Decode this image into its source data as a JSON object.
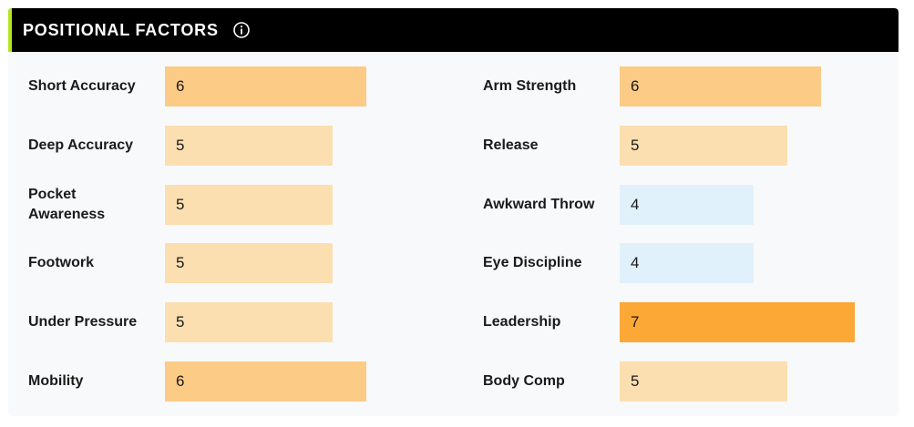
{
  "title": "POSITIONAL FACTORS",
  "icons": {
    "info": "info-icon"
  },
  "colors": {
    "header_bg": "#000000",
    "accent": "#b5e61d",
    "panel_bg": "#f8f9fb",
    "score_4": "#e1f1fc",
    "score_5": "#fcdfb1",
    "score_6": "#fccb86",
    "score_7": "#fba837"
  },
  "scale_max": 7,
  "left_factors": [
    {
      "label": "Short Accuracy",
      "value": 6
    },
    {
      "label": "Deep Accuracy",
      "value": 5
    },
    {
      "label": "Pocket Awareness",
      "value": 5
    },
    {
      "label": "Footwork",
      "value": 5
    },
    {
      "label": "Under Pressure",
      "value": 5
    },
    {
      "label": "Mobility",
      "value": 6
    }
  ],
  "right_factors": [
    {
      "label": "Arm Strength",
      "value": 6
    },
    {
      "label": "Release",
      "value": 5
    },
    {
      "label": "Awkward Throw",
      "value": 4
    },
    {
      "label": "Eye Discipline",
      "value": 4
    },
    {
      "label": "Leadership",
      "value": 7
    },
    {
      "label": "Body Comp",
      "value": 5
    }
  ]
}
